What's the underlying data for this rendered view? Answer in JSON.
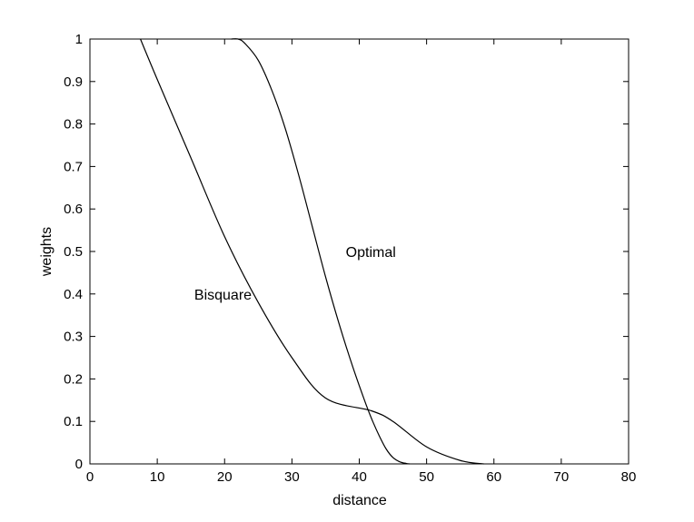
{
  "chart_data": {
    "type": "line",
    "xlabel": "distance",
    "ylabel": "weights",
    "xlim": [
      0,
      80
    ],
    "ylim": [
      0,
      1
    ],
    "xticks": [
      "0",
      "10",
      "20",
      "30",
      "40",
      "50",
      "60",
      "70",
      "80"
    ],
    "yticks": [
      "0",
      "0.1",
      "0.2",
      "0.3",
      "0.4",
      "0.5",
      "0.6",
      "0.7",
      "0.8",
      "0.9",
      "1"
    ],
    "grid": false,
    "annotations": [
      {
        "text": "Bisquare",
        "x": 15.5,
        "y": 0.4
      },
      {
        "text": "Optimal",
        "x": 38,
        "y": 0.5
      }
    ],
    "series": [
      {
        "x": [
          7.5,
          10,
          15,
          20,
          25,
          30,
          35,
          40,
          41.8,
          45,
          50,
          55,
          58.5
        ],
        "values": [
          1.0,
          0.905,
          0.72,
          0.535,
          0.38,
          0.25,
          0.155,
          0.075,
          0.125,
          0.1,
          0.04,
          0.008,
          0.0
        ]
      },
      {
        "x": [
          21,
          22,
          23,
          25,
          27,
          29,
          31,
          33,
          35,
          37,
          39,
          41,
          42,
          43,
          44,
          45,
          46,
          47,
          47.5
        ],
        "values": [
          1.0,
          1.0,
          0.99,
          0.95,
          0.88,
          0.79,
          0.68,
          0.56,
          0.44,
          0.33,
          0.23,
          0.14,
          0.1,
          0.065,
          0.035,
          0.015,
          0.005,
          0.001,
          0.0
        ]
      }
    ]
  }
}
